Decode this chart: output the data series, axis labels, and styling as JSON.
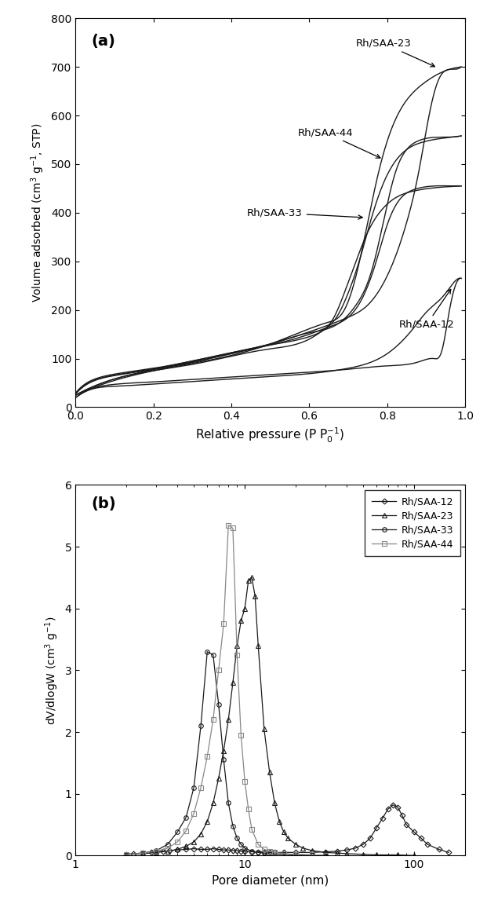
{
  "fig_width": 6.21,
  "fig_height": 11.65,
  "background_color": "#ffffff",
  "panel_a": {
    "label": "(a)",
    "xlabel": "Relative pressure (P P$_0^{-1}$)",
    "ylabel": "Volume adsorbed (cm$^3$ g$^{-1}$, STP)",
    "xlim": [
      0.0,
      1.0
    ],
    "ylim": [
      0,
      800
    ],
    "yticks": [
      0,
      100,
      200,
      300,
      400,
      500,
      600,
      700,
      800
    ],
    "xticks": [
      0.0,
      0.2,
      0.4,
      0.6,
      0.8,
      1.0
    ]
  },
  "panel_b": {
    "label": "(b)",
    "xlabel": "Pore diameter (nm)",
    "ylabel": "dV/dlogW (cm$^3$ g$^{-1}$)",
    "xlim": [
      1,
      200
    ],
    "ylim": [
      0,
      6
    ],
    "yticks": [
      0,
      1,
      2,
      3,
      4,
      5,
      6
    ],
    "legend": [
      "Rh/SAA-12",
      "Rh/SAA-23",
      "Rh/SAA-33",
      "Rh/SAA-44"
    ],
    "markers": [
      "D",
      "^",
      "o",
      "s"
    ],
    "line_colors": [
      "#1a1a1a",
      "#1a1a1a",
      "#1a1a1a",
      "#888888"
    ]
  }
}
